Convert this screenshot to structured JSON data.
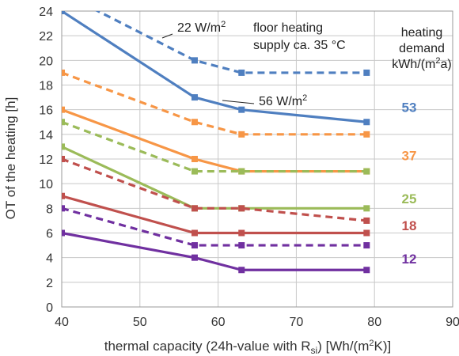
{
  "chart_data": {
    "type": "line",
    "xlabel": "thermal capacity (24h-value with R",
    "xlabel_sub": "si",
    "xlabel_unit": "[Wh/(m",
    "xlabel_unit_sup": "2",
    "xlabel_unit_end": "K)]",
    "ylabel": "OT of the heating [h]",
    "xlim": [
      40,
      90
    ],
    "ylim": [
      0,
      24
    ],
    "x_ticks": [
      40,
      50,
      60,
      70,
      80,
      90
    ],
    "y_ticks": [
      0,
      2,
      4,
      6,
      8,
      10,
      12,
      14,
      16,
      18,
      20,
      22,
      24
    ],
    "grid": true,
    "x": [
      40,
      57,
      63,
      79
    ],
    "legend_title": {
      "line1": "heating",
      "line2": "demand",
      "line3_pre": "kWh/(m",
      "line3_sup": "2",
      "line3_post": "a)"
    },
    "annotations": {
      "w22_pre": "22 W/m",
      "w22_sup": "2",
      "w56_pre": "56 W/m",
      "w56_sup": "2",
      "floor_line1": "floor heating",
      "floor_line2": "supply  ca. 35 °C"
    },
    "series": [
      {
        "demand": "53",
        "color": "#4f7fc0",
        "style": "solid",
        "values": [
          24,
          17,
          16,
          15
        ]
      },
      {
        "demand": "53",
        "color": "#4f7fc0",
        "style": "dashed",
        "values": [
          25.5,
          20,
          19,
          19
        ]
      },
      {
        "demand": "37",
        "color": "#f79646",
        "style": "solid",
        "values": [
          16,
          12,
          11,
          11
        ]
      },
      {
        "demand": "37",
        "color": "#f79646",
        "style": "dashed",
        "values": [
          19,
          15,
          14,
          14
        ]
      },
      {
        "demand": "25",
        "color": "#9bbb59",
        "style": "solid",
        "values": [
          13,
          8,
          8,
          8
        ]
      },
      {
        "demand": "25",
        "color": "#9bbb59",
        "style": "dashed",
        "values": [
          15,
          11,
          11,
          11
        ]
      },
      {
        "demand": "18",
        "color": "#c0504d",
        "style": "solid",
        "values": [
          9,
          6,
          6,
          6
        ]
      },
      {
        "demand": "18",
        "color": "#c0504d",
        "style": "dashed",
        "values": [
          12,
          8,
          8,
          7
        ]
      },
      {
        "demand": "12",
        "color": "#7030a0",
        "style": "solid",
        "values": [
          6,
          4,
          3,
          3
        ]
      },
      {
        "demand": "12",
        "color": "#7030a0",
        "style": "dashed",
        "values": [
          8,
          5,
          5,
          5
        ]
      }
    ],
    "demand_labels": [
      {
        "text": "53",
        "color": "#4f7fc0",
        "y": 16.2
      },
      {
        "text": "37",
        "color": "#f79646",
        "y": 12.3
      },
      {
        "text": "25",
        "color": "#9bbb59",
        "y": 8.8
      },
      {
        "text": "18",
        "color": "#c0504d",
        "y": 6.6
      },
      {
        "text": "12",
        "color": "#7030a0",
        "y": 3.9
      }
    ]
  }
}
